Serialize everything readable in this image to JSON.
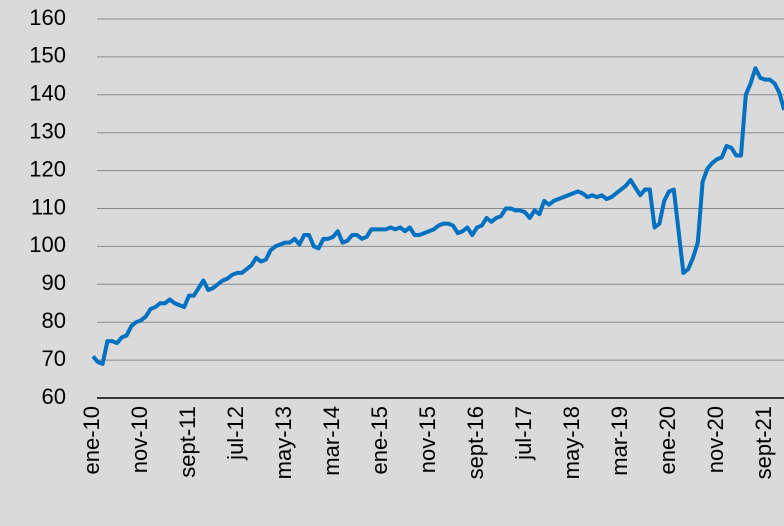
{
  "chart_data": {
    "type": "line",
    "categories": [
      "ene-10",
      null,
      null,
      null,
      null,
      null,
      null,
      null,
      null,
      null,
      "nov-10",
      null,
      null,
      null,
      null,
      null,
      null,
      null,
      null,
      null,
      "sept-11",
      null,
      null,
      null,
      null,
      null,
      null,
      null,
      null,
      null,
      "jul-12",
      null,
      null,
      null,
      null,
      null,
      null,
      null,
      null,
      null,
      "may-13",
      null,
      null,
      null,
      null,
      null,
      null,
      null,
      null,
      null,
      "mar-14",
      null,
      null,
      null,
      null,
      null,
      null,
      null,
      null,
      null,
      "ene-15",
      null,
      null,
      null,
      null,
      null,
      null,
      null,
      null,
      null,
      "nov-15",
      null,
      null,
      null,
      null,
      null,
      null,
      null,
      null,
      null,
      "sept-16",
      null,
      null,
      null,
      null,
      null,
      null,
      null,
      null,
      null,
      "jul-17",
      null,
      null,
      null,
      null,
      null,
      null,
      null,
      null,
      null,
      "may-18",
      null,
      null,
      null,
      null,
      null,
      null,
      null,
      null,
      null,
      "mar-19",
      null,
      null,
      null,
      null,
      null,
      null,
      null,
      null,
      null,
      "ene-20",
      null,
      null,
      null,
      null,
      null,
      null,
      null,
      null,
      null,
      "nov-20",
      null,
      null,
      null,
      null,
      null,
      null,
      null,
      null,
      null,
      "sept-21",
      null,
      null,
      null,
      null
    ],
    "values": [
      71,
      69.5,
      69,
      75,
      75,
      74.5,
      76,
      76.5,
      79,
      80,
      80.5,
      81.5,
      83.5,
      84,
      85,
      85,
      86,
      85,
      84.5,
      84,
      87,
      87,
      89,
      91,
      88.5,
      89,
      90,
      91,
      91.5,
      92.5,
      93,
      93,
      94,
      95,
      97,
      96,
      96.5,
      99,
      100,
      100.5,
      101,
      101,
      102,
      100.5,
      103,
      103,
      100,
      99.5,
      102,
      102,
      102.5,
      104,
      101,
      101.5,
      103,
      103,
      102,
      102.5,
      104.5,
      104.5,
      104.5,
      104.5,
      105,
      104.5,
      105,
      104,
      105,
      103,
      103,
      103.5,
      104,
      104.5,
      105.5,
      106,
      106,
      105.5,
      103.5,
      104,
      105,
      103,
      105,
      105.5,
      107.5,
      106.5,
      107.5,
      108,
      110,
      110,
      109.5,
      109.5,
      109,
      107.5,
      109.5,
      108.5,
      112,
      111,
      112,
      112.5,
      113,
      113.5,
      114,
      114.5,
      114,
      113,
      113.5,
      113,
      113.5,
      112.5,
      113,
      114,
      115,
      116,
      117.5,
      115.5,
      113.5,
      115,
      115,
      105,
      106,
      112,
      114.5,
      115,
      104,
      93,
      94,
      97,
      101,
      117,
      120.5,
      122,
      123,
      123.5,
      126.5,
      126,
      124,
      124,
      140,
      143,
      147,
      144.5,
      144,
      144,
      143,
      140.5,
      136
    ],
    "color": "#0070c0",
    "ylim": [
      60,
      160
    ],
    "yticks": [
      60,
      70,
      80,
      90,
      100,
      110,
      120,
      130,
      140,
      150,
      160
    ],
    "grid": true
  }
}
